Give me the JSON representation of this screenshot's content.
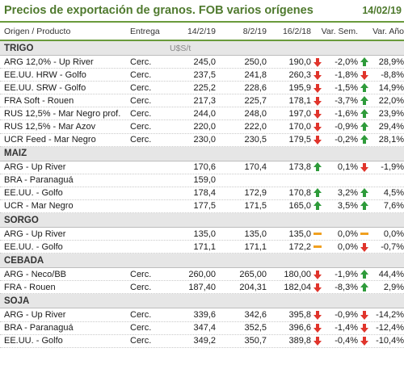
{
  "header": {
    "title": "Precios de exportación de granos. FOB varios orígenes",
    "date": "14/02/19"
  },
  "columns": {
    "name": "Origen / Producto",
    "entrega": "Entrega",
    "d1": "14/2/19",
    "d2": "8/2/19",
    "d3": "16/2/18",
    "sem": "Var. Sem.",
    "ano": "Var. Año"
  },
  "colors": {
    "accent": "#4f7a2e",
    "up": "#2e9b3a",
    "down": "#e0342b",
    "flat": "#f0a020"
  },
  "sections": [
    {
      "name": "TRIGO",
      "unit": "U$S/t",
      "rows": [
        {
          "name": "ARG 12,0% - Up River",
          "entrega": "Cerc.",
          "v1": "245,0",
          "v2": "250,0",
          "v3": "190,0",
          "ic1": "down",
          "sem": "-2,0%",
          "ic2": "up",
          "ano": "28,9%"
        },
        {
          "name": "EE.UU. HRW - Golfo",
          "entrega": "Cerc.",
          "v1": "237,5",
          "v2": "241,8",
          "v3": "260,3",
          "ic1": "down",
          "sem": "-1,8%",
          "ic2": "down",
          "ano": "-8,8%"
        },
        {
          "name": "EE.UU. SRW - Golfo",
          "entrega": "Cerc.",
          "v1": "225,2",
          "v2": "228,6",
          "v3": "195,9",
          "ic1": "down",
          "sem": "-1,5%",
          "ic2": "up",
          "ano": "14,9%"
        },
        {
          "name": "FRA Soft - Rouen",
          "entrega": "Cerc.",
          "v1": "217,3",
          "v2": "225,7",
          "v3": "178,1",
          "ic1": "down",
          "sem": "-3,7%",
          "ic2": "up",
          "ano": "22,0%"
        },
        {
          "name": "RUS 12,5% - Mar Negro prof.",
          "entrega": "Cerc.",
          "v1": "244,0",
          "v2": "248,0",
          "v3": "197,0",
          "ic1": "down",
          "sem": "-1,6%",
          "ic2": "up",
          "ano": "23,9%"
        },
        {
          "name": "RUS 12,5% - Mar Azov",
          "entrega": "Cerc.",
          "v1": "220,0",
          "v2": "222,0",
          "v3": "170,0",
          "ic1": "down",
          "sem": "-0,9%",
          "ic2": "up",
          "ano": "29,4%"
        },
        {
          "name": "UCR Feed - Mar Negro",
          "entrega": "Cerc.",
          "v1": "230,0",
          "v2": "230,5",
          "v3": "179,5",
          "ic1": "down",
          "sem": "-0,2%",
          "ic2": "up",
          "ano": "28,1%"
        }
      ]
    },
    {
      "name": "MAIZ",
      "unit": "",
      "rows": [
        {
          "name": "ARG - Up River",
          "entrega": "",
          "v1": "170,6",
          "v2": "170,4",
          "v3": "173,8",
          "ic1": "up",
          "sem": "0,1%",
          "ic2": "down",
          "ano": "-1,9%"
        },
        {
          "name": "BRA - Paranaguá",
          "entrega": "",
          "v1": "159,0",
          "v2": "",
          "v3": "",
          "ic1": "",
          "sem": "",
          "ic2": "",
          "ano": ""
        },
        {
          "name": "EE.UU. - Golfo",
          "entrega": "",
          "v1": "178,4",
          "v2": "172,9",
          "v3": "170,8",
          "ic1": "up",
          "sem": "3,2%",
          "ic2": "up",
          "ano": "4,5%"
        },
        {
          "name": "UCR - Mar Negro",
          "entrega": "",
          "v1": "177,5",
          "v2": "171,5",
          "v3": "165,0",
          "ic1": "up",
          "sem": "3,5%",
          "ic2": "up",
          "ano": "7,6%"
        }
      ]
    },
    {
      "name": "SORGO",
      "unit": "",
      "rows": [
        {
          "name": "ARG - Up River",
          "entrega": "",
          "v1": "135,0",
          "v2": "135,0",
          "v3": "135,0",
          "ic1": "flat",
          "sem": "0,0%",
          "ic2": "flat",
          "ano": "0,0%"
        },
        {
          "name": "EE.UU. - Golfo",
          "entrega": "",
          "v1": "171,1",
          "v2": "171,1",
          "v3": "172,2",
          "ic1": "flat",
          "sem": "0,0%",
          "ic2": "down",
          "ano": "-0,7%"
        }
      ]
    },
    {
      "name": "CEBADA",
      "unit": "",
      "rows": [
        {
          "name": "ARG - Neco/BB",
          "entrega": "Cerc.",
          "v1": "260,00",
          "v2": "265,00",
          "v3": "180,00",
          "ic1": "down",
          "sem": "-1,9%",
          "ic2": "up",
          "ano": "44,4%"
        },
        {
          "name": "FRA - Rouen",
          "entrega": "Cerc.",
          "v1": "187,40",
          "v2": "204,31",
          "v3": "182,04",
          "ic1": "down",
          "sem": "-8,3%",
          "ic2": "up",
          "ano": "2,9%"
        }
      ]
    },
    {
      "name": "SOJA",
      "unit": "",
      "rows": [
        {
          "name": "ARG - Up River",
          "entrega": "Cerc.",
          "v1": "339,6",
          "v2": "342,6",
          "v3": "395,8",
          "ic1": "down",
          "sem": "-0,9%",
          "ic2": "down",
          "ano": "-14,2%"
        },
        {
          "name": "BRA - Paranaguá",
          "entrega": "Cerc.",
          "v1": "347,4",
          "v2": "352,5",
          "v3": "396,6",
          "ic1": "down",
          "sem": "-1,4%",
          "ic2": "down",
          "ano": "-12,4%"
        },
        {
          "name": "EE.UU. - Golfo",
          "entrega": "Cerc.",
          "v1": "349,2",
          "v2": "350,7",
          "v3": "389,8",
          "ic1": "down",
          "sem": "-0,4%",
          "ic2": "down",
          "ano": "-10,4%"
        }
      ]
    }
  ]
}
